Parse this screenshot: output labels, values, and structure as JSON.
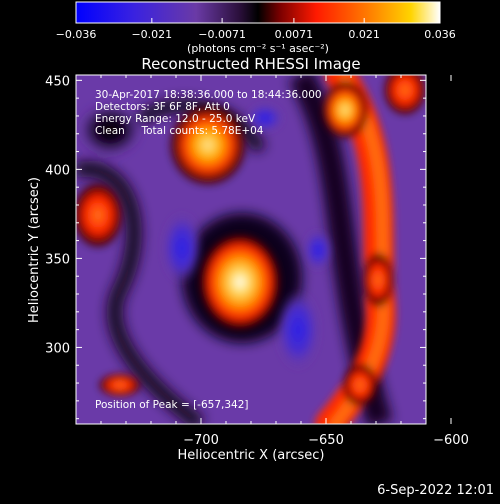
{
  "colorbar": {
    "tick_labels": [
      "−0.036",
      "−0.021",
      "−0.0071",
      "0.0071",
      "0.021",
      "0.036"
    ],
    "tick_values": [
      -0.036,
      -0.021,
      -0.0071,
      0.0071,
      0.021,
      0.036
    ],
    "range": [
      -0.036,
      0.036
    ],
    "unit_label": "(photons cm⁻² s⁻¹ asec⁻²)"
  },
  "chart_data": {
    "type": "heatmap",
    "title": "Reconstructed RHESSI Image",
    "xlabel": "Heliocentric X (arcsec)",
    "ylabel": "Heliocentric Y (arcsec)",
    "xlim": [
      -750,
      -610
    ],
    "ylim": [
      257,
      453
    ],
    "x_ticks": [
      -700,
      -650,
      -600
    ],
    "x_tick_labels": [
      "−700",
      "−650",
      "−600"
    ],
    "y_ticks": [
      300,
      350,
      400,
      450
    ],
    "y_tick_labels": [
      "300",
      "350",
      "400",
      "450"
    ],
    "peak": [
      -657,
      342
    ],
    "colormap": [
      "#0000ff",
      "#5b2dbf",
      "#6b3aa8",
      "#2a0f3a",
      "#000000",
      "#ff0000",
      "#ff8000",
      "#ffd700",
      "#ffffff"
    ],
    "annotations": [
      "30-Apr-2017 18:38:36.000 to 18:44:36.000",
      "Detectors: 3F 6F 8F, Att 0",
      "Energy Range: 12.0 - 25.0 keV",
      "Clean     Total counts: 5.78E+04",
      "Position of Peak = [-657,342]"
    ]
  },
  "footer": {
    "timestamp": "6-Sep-2022 12:01"
  }
}
